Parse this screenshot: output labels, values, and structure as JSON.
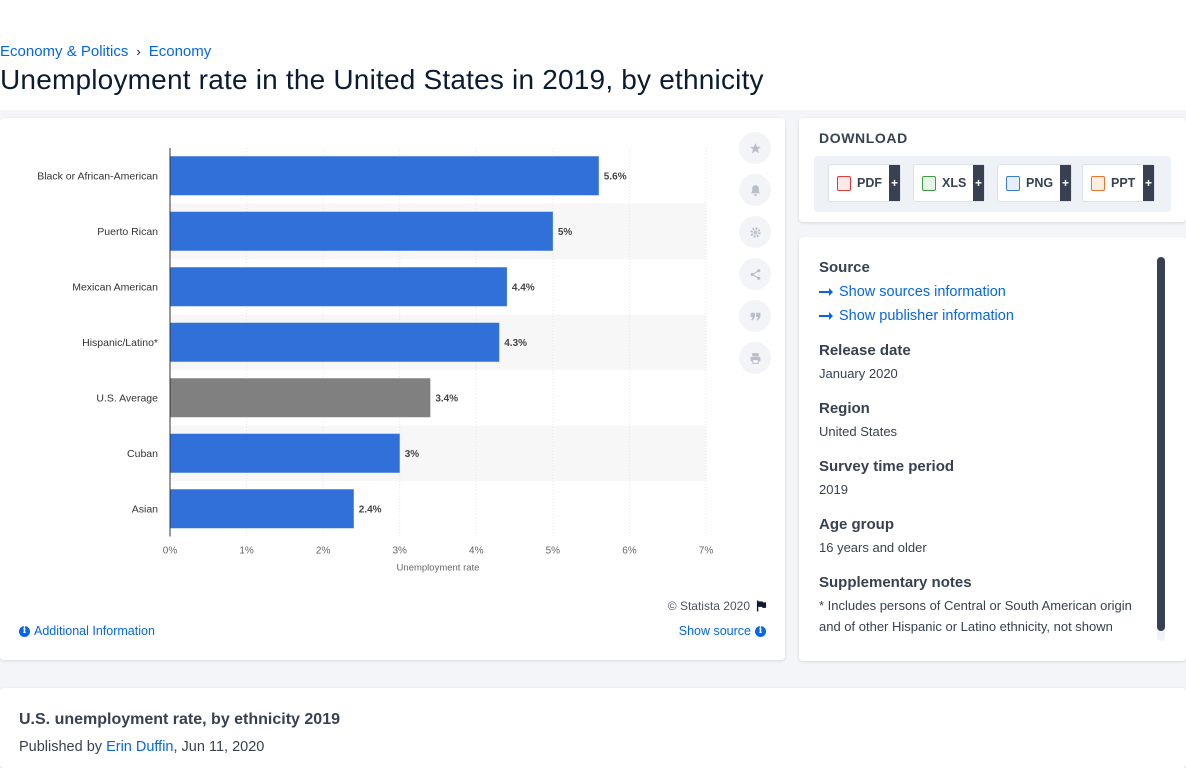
{
  "breadcrumb": {
    "items": [
      "Economy & Politics",
      "Economy"
    ],
    "separator": "›"
  },
  "page_title": "Unemployment rate in the United States in 2019, by ethnicity",
  "chart_data": {
    "type": "bar",
    "orientation": "horizontal",
    "categories": [
      "Black or African-American",
      "Puerto Rican",
      "Mexican American",
      "Hispanic/Latino*",
      "U.S. Average",
      "Cuban",
      "Asian"
    ],
    "values": [
      5.6,
      5,
      4.4,
      4.3,
      3.4,
      3,
      2.4
    ],
    "value_labels": [
      "5.6%",
      "5%",
      "4.4%",
      "4.3%",
      "3.4%",
      "3%",
      "2.4%"
    ],
    "highlight_category": "U.S. Average",
    "colors": {
      "bar": "#3170d9",
      "highlight": "#808080"
    },
    "xlabel": "Unemployment rate",
    "xlim": [
      0,
      7
    ],
    "x_ticks": [
      "0%",
      "1%",
      "2%",
      "3%",
      "4%",
      "5%",
      "6%",
      "7%"
    ],
    "grid": true
  },
  "chart_footer": {
    "copyright": "© Statista 2020",
    "additional_info": "Additional Information",
    "show_source": "Show source"
  },
  "toolbar": {
    "icons": [
      "star-icon",
      "bell-icon",
      "gear-icon",
      "share-icon",
      "quote-icon",
      "print-icon"
    ]
  },
  "download": {
    "title": "DOWNLOAD",
    "buttons": [
      {
        "label": "PDF",
        "icon": "pdf-file-icon",
        "color": "#e03b3b"
      },
      {
        "label": "XLS",
        "icon": "xls-file-icon",
        "color": "#3d9a45"
      },
      {
        "label": "PNG",
        "icon": "png-file-icon",
        "color": "#3a7bd5"
      },
      {
        "label": "PPT",
        "icon": "ppt-file-icon",
        "color": "#e8762b"
      }
    ],
    "plus": "+"
  },
  "info": {
    "source_label": "Source",
    "show_sources": "Show sources information",
    "show_publisher": "Show publisher information",
    "release_date_label": "Release date",
    "release_date": "January 2020",
    "region_label": "Region",
    "region": "United States",
    "survey_period_label": "Survey time period",
    "survey_period": "2019",
    "age_group_label": "Age group",
    "age_group": "16 years and older",
    "notes_label": "Supplementary notes",
    "notes": "* Includes persons of Central or South American origin and of other Hispanic or Latino ethnicity, not shown separately"
  },
  "bottom": {
    "title": "U.S. unemployment rate, by ethnicity 2019",
    "published_prefix": "Published by",
    "author": "Erin Duffin",
    "date": ", Jun 11, 2020"
  }
}
